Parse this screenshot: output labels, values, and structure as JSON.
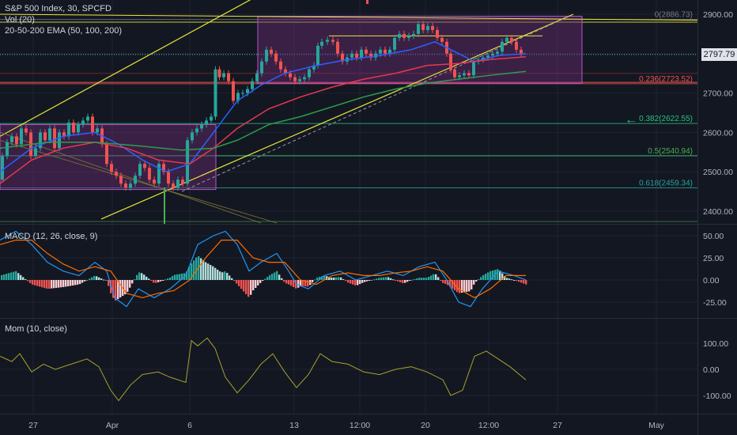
{
  "header": {
    "symbol_line": "S&P 500 Index, 30, SPCFD",
    "vol_label": "Vol (20)",
    "ema_label": "20-50-200 EMA (50, 100, 200)"
  },
  "macd_panel": {
    "label": "MACD (12, 26, close, 9)"
  },
  "mom_panel": {
    "label": "Mom (10, close)"
  },
  "colors": {
    "background": "#131722",
    "grid": "#1f2333",
    "axis_text": "#b2b5be",
    "candle_up": "#26a69a",
    "candle_down": "#ef5350",
    "ema_fast": "#2962ff",
    "ema_mid": "#e53950",
    "ema_slow": "#2e9e4d",
    "channel": "#e5e53a",
    "box_fill": "#6a2c70",
    "box_border": "#b854c9",
    "macd_line": "#2196f3",
    "signal_line": "#ff6d00",
    "mom_line": "#a6a32b",
    "fib_0": "#787b86",
    "fib_236": "#ef5350",
    "fib_382": "#26c281",
    "fib_5": "#4caf50",
    "fib_618": "#26a69a"
  },
  "chart_data": [
    {
      "type": "candlestick",
      "title": "S&P 500 Index, 30, SPCFD",
      "x_tick_labels": [
        "27",
        "Apr",
        "6",
        "13",
        "12:00",
        "20",
        "12:00",
        "27",
        "May"
      ],
      "y_tick_labels": [
        "2900.00",
        "2800.00",
        "2700.00",
        "2600.00",
        "2500.00",
        "2400.00"
      ],
      "ylim": [
        2370,
        2935
      ],
      "last_price": "2797.79",
      "price_path": [
        [
          0,
          2480
        ],
        [
          6,
          2540
        ],
        [
          12,
          2575
        ],
        [
          18,
          2590
        ],
        [
          24,
          2570
        ],
        [
          30,
          2610
        ],
        [
          36,
          2600
        ],
        [
          42,
          2540
        ],
        [
          48,
          2560
        ],
        [
          54,
          2600
        ],
        [
          60,
          2580
        ],
        [
          66,
          2610
        ],
        [
          72,
          2560
        ],
        [
          78,
          2600
        ],
        [
          84,
          2590
        ],
        [
          90,
          2625
        ],
        [
          96,
          2600
        ],
        [
          102,
          2620
        ],
        [
          108,
          2630
        ],
        [
          114,
          2640
        ],
        [
          120,
          2600
        ],
        [
          126,
          2610
        ],
        [
          132,
          2570
        ],
        [
          138,
          2520
        ],
        [
          144,
          2500
        ],
        [
          150,
          2490
        ],
        [
          156,
          2470
        ],
        [
          162,
          2460
        ],
        [
          168,
          2470
        ],
        [
          174,
          2490
        ],
        [
          180,
          2520
        ],
        [
          186,
          2510
        ],
        [
          192,
          2480
        ],
        [
          198,
          2470
        ],
        [
          204,
          2520
        ],
        [
          210,
          2500
        ],
        [
          216,
          2470
        ],
        [
          222,
          2460
        ],
        [
          228,
          2480
        ],
        [
          234,
          2470
        ],
        [
          240,
          2580
        ],
        [
          246,
          2600
        ],
        [
          252,
          2610
        ],
        [
          258,
          2620
        ],
        [
          264,
          2630
        ],
        [
          270,
          2640
        ],
        [
          275,
          2760
        ],
        [
          280,
          2740
        ],
        [
          286,
          2750
        ],
        [
          292,
          2730
        ],
        [
          298,
          2680
        ],
        [
          304,
          2700
        ],
        [
          310,
          2700
        ],
        [
          316,
          2710
        ],
        [
          322,
          2730
        ],
        [
          328,
          2750
        ],
        [
          334,
          2780
        ],
        [
          340,
          2810
        ],
        [
          346,
          2800
        ],
        [
          352,
          2780
        ],
        [
          358,
          2760
        ],
        [
          364,
          2750
        ],
        [
          370,
          2740
        ],
        [
          376,
          2730
        ],
        [
          382,
          2735
        ],
        [
          388,
          2740
        ],
        [
          394,
          2760
        ],
        [
          400,
          2770
        ],
        [
          404,
          2820
        ],
        [
          410,
          2830
        ],
        [
          418,
          2835
        ],
        [
          424,
          2830
        ],
        [
          430,
          2800
        ],
        [
          436,
          2780
        ],
        [
          442,
          2790
        ],
        [
          448,
          2800
        ],
        [
          454,
          2790
        ],
        [
          460,
          2810
        ],
        [
          466,
          2800
        ],
        [
          472,
          2790
        ],
        [
          478,
          2800
        ],
        [
          484,
          2810
        ],
        [
          490,
          2800
        ],
        [
          496,
          2810
        ],
        [
          502,
          2840
        ],
        [
          508,
          2850
        ],
        [
          514,
          2840
        ],
        [
          520,
          2845
        ],
        [
          526,
          2850
        ],
        [
          532,
          2875
        ],
        [
          538,
          2860
        ],
        [
          544,
          2870
        ],
        [
          550,
          2860
        ],
        [
          556,
          2840
        ],
        [
          562,
          2830
        ],
        [
          568,
          2800
        ],
        [
          572,
          2760
        ],
        [
          578,
          2740
        ],
        [
          584,
          2745
        ],
        [
          590,
          2750
        ],
        [
          596,
          2745
        ],
        [
          602,
          2780
        ],
        [
          608,
          2785
        ],
        [
          614,
          2790
        ],
        [
          620,
          2795
        ],
        [
          626,
          2800
        ],
        [
          632,
          2805
        ],
        [
          638,
          2830
        ],
        [
          644,
          2840
        ],
        [
          650,
          2830
        ],
        [
          656,
          2810
        ],
        [
          662,
          2800
        ]
      ],
      "ema_50": [
        [
          0,
          2500
        ],
        [
          40,
          2560
        ],
        [
          80,
          2590
        ],
        [
          120,
          2600
        ],
        [
          150,
          2570
        ],
        [
          180,
          2530
        ],
        [
          210,
          2500
        ],
        [
          240,
          2520
        ],
        [
          270,
          2600
        ],
        [
          300,
          2680
        ],
        [
          330,
          2720
        ],
        [
          360,
          2750
        ],
        [
          400,
          2770
        ],
        [
          440,
          2785
        ],
        [
          480,
          2795
        ],
        [
          520,
          2810
        ],
        [
          550,
          2830
        ],
        [
          570,
          2810
        ],
        [
          600,
          2780
        ],
        [
          630,
          2795
        ],
        [
          665,
          2800
        ]
      ],
      "ema_100": [
        [
          0,
          2470
        ],
        [
          40,
          2530
        ],
        [
          80,
          2560
        ],
        [
          120,
          2575
        ],
        [
          160,
          2560
        ],
        [
          200,
          2530
        ],
        [
          240,
          2520
        ],
        [
          270,
          2560
        ],
        [
          300,
          2610
        ],
        [
          340,
          2660
        ],
        [
          380,
          2690
        ],
        [
          420,
          2715
        ],
        [
          460,
          2735
        ],
        [
          500,
          2750
        ],
        [
          540,
          2770
        ],
        [
          580,
          2775
        ],
        [
          620,
          2785
        ],
        [
          665,
          2792
        ]
      ],
      "ema_200": [
        [
          0,
          2560
        ],
        [
          60,
          2575
        ],
        [
          120,
          2575
        ],
        [
          180,
          2565
        ],
        [
          230,
          2555
        ],
        [
          270,
          2560
        ],
        [
          300,
          2580
        ],
        [
          340,
          2620
        ],
        [
          380,
          2640
        ],
        [
          420,
          2665
        ],
        [
          460,
          2690
        ],
        [
          500,
          2710
        ],
        [
          540,
          2725
        ],
        [
          580,
          2735
        ],
        [
          620,
          2745
        ],
        [
          665,
          2755
        ]
      ],
      "fib_levels": [
        {
          "ratio": "0",
          "label": "0(2886.73)",
          "price": 2886.73
        },
        {
          "ratio": "0.236",
          "label": "0.236(2723.52)",
          "price": 2723.52
        },
        {
          "ratio": "0.382",
          "label": "0.382(2622.55)",
          "price": 2622.55
        },
        {
          "ratio": "0.5",
          "label": "0.5(2540.94)",
          "price": 2540.94
        },
        {
          "ratio": "0.618",
          "label": "0.618(2459.34)",
          "price": 2459.34
        }
      ]
    },
    {
      "type": "line",
      "title": "MACD (12, 26, close, 9)",
      "y_tick_labels": [
        "50.00",
        "25.00",
        "0.00",
        "-25.00"
      ],
      "ylim": [
        -45,
        60
      ],
      "macd": [
        [
          0,
          45
        ],
        [
          20,
          55
        ],
        [
          40,
          40
        ],
        [
          60,
          20
        ],
        [
          80,
          10
        ],
        [
          100,
          5
        ],
        [
          120,
          20
        ],
        [
          135,
          10
        ],
        [
          145,
          -20
        ],
        [
          160,
          -30
        ],
        [
          175,
          -10
        ],
        [
          195,
          -20
        ],
        [
          215,
          -10
        ],
        [
          235,
          5
        ],
        [
          250,
          40
        ],
        [
          270,
          50
        ],
        [
          285,
          55
        ],
        [
          300,
          40
        ],
        [
          315,
          10
        ],
        [
          330,
          20
        ],
        [
          350,
          30
        ],
        [
          365,
          10
        ],
        [
          375,
          -5
        ],
        [
          390,
          -10
        ],
        [
          410,
          5
        ],
        [
          430,
          10
        ],
        [
          450,
          0
        ],
        [
          470,
          5
        ],
        [
          490,
          10
        ],
        [
          510,
          5
        ],
        [
          530,
          15
        ],
        [
          550,
          20
        ],
        [
          565,
          0
        ],
        [
          580,
          -25
        ],
        [
          595,
          -30
        ],
        [
          610,
          -10
        ],
        [
          630,
          10
        ],
        [
          650,
          5
        ],
        [
          665,
          0
        ]
      ],
      "signal": [
        [
          0,
          40
        ],
        [
          20,
          45
        ],
        [
          40,
          45
        ],
        [
          60,
          30
        ],
        [
          80,
          18
        ],
        [
          100,
          10
        ],
        [
          120,
          15
        ],
        [
          140,
          10
        ],
        [
          160,
          -15
        ],
        [
          180,
          -20
        ],
        [
          200,
          -15
        ],
        [
          220,
          -12
        ],
        [
          240,
          0
        ],
        [
          260,
          25
        ],
        [
          280,
          45
        ],
        [
          300,
          45
        ],
        [
          320,
          25
        ],
        [
          340,
          20
        ],
        [
          360,
          20
        ],
        [
          380,
          0
        ],
        [
          400,
          -5
        ],
        [
          420,
          5
        ],
        [
          440,
          8
        ],
        [
          460,
          5
        ],
        [
          480,
          5
        ],
        [
          500,
          8
        ],
        [
          520,
          10
        ],
        [
          540,
          15
        ],
        [
          560,
          10
        ],
        [
          580,
          -10
        ],
        [
          600,
          -20
        ],
        [
          620,
          -10
        ],
        [
          640,
          5
        ],
        [
          665,
          5
        ]
      ]
    },
    {
      "type": "line",
      "title": "Mom (10, close)",
      "y_tick_labels": [
        "100.00",
        "0.00",
        "-100.00"
      ],
      "ylim": [
        -150,
        150
      ],
      "values": [
        [
          0,
          50
        ],
        [
          15,
          30
        ],
        [
          25,
          60
        ],
        [
          40,
          -10
        ],
        [
          55,
          20
        ],
        [
          70,
          0
        ],
        [
          90,
          20
        ],
        [
          110,
          40
        ],
        [
          125,
          10
        ],
        [
          140,
          -80
        ],
        [
          150,
          -120
        ],
        [
          165,
          -60
        ],
        [
          180,
          -20
        ],
        [
          200,
          -10
        ],
        [
          215,
          -30
        ],
        [
          235,
          -50
        ],
        [
          242,
          110
        ],
        [
          250,
          90
        ],
        [
          262,
          120
        ],
        [
          272,
          80
        ],
        [
          285,
          -30
        ],
        [
          300,
          -90
        ],
        [
          315,
          -40
        ],
        [
          330,
          20
        ],
        [
          345,
          60
        ],
        [
          360,
          -10
        ],
        [
          375,
          -70
        ],
        [
          390,
          -20
        ],
        [
          405,
          60
        ],
        [
          420,
          30
        ],
        [
          440,
          20
        ],
        [
          460,
          -10
        ],
        [
          480,
          -20
        ],
        [
          500,
          0
        ],
        [
          520,
          10
        ],
        [
          540,
          -10
        ],
        [
          560,
          -40
        ],
        [
          570,
          -100
        ],
        [
          585,
          -80
        ],
        [
          600,
          50
        ],
        [
          615,
          70
        ],
        [
          630,
          40
        ],
        [
          645,
          10
        ],
        [
          665,
          -40
        ]
      ]
    }
  ]
}
